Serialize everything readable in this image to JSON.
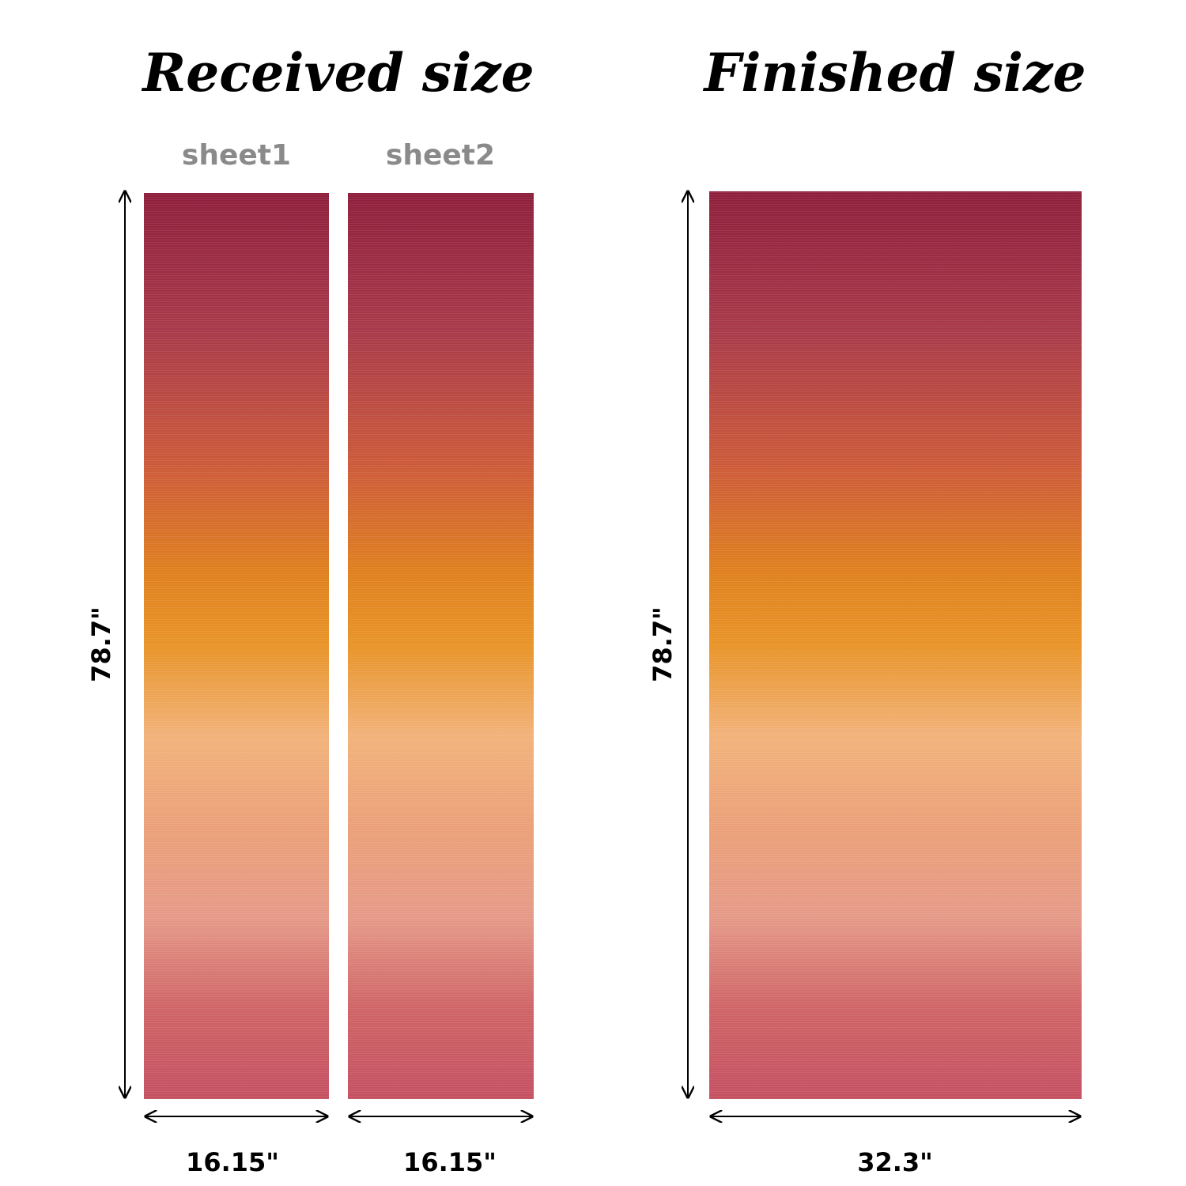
{
  "received": {
    "title": "Received size",
    "height": "78.7\"",
    "sheets": [
      {
        "label": "sheet1",
        "width": "16.15\""
      },
      {
        "label": "sheet2",
        "width": "16.15\""
      }
    ]
  },
  "finished": {
    "title": "Finished size",
    "height": "78.7\"",
    "width": "32.3\""
  }
}
